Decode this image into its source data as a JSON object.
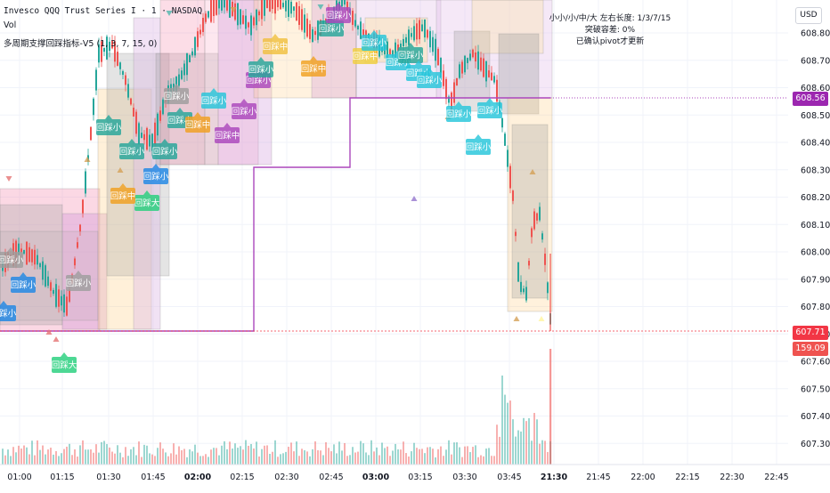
{
  "header": {
    "symbol_line": "Invesco QQQ Trust Series I · 1 · NASDAQ",
    "vol_label": "Vol",
    "indicator_line": "多周期支撑回踩指标-V5 (1, 3, 7, 15, 0)"
  },
  "info_panel": {
    "line1": "小小/小/中/大 左右长度: 1/3/7/15",
    "line2": "突破容差: 0%",
    "line3": "已确认pivot才更新"
  },
  "currency_button": "USD",
  "price_tags": {
    "level": "608.56",
    "last": "607.71",
    "volume": "159.09 K"
  },
  "colors": {
    "up": "#26a69a",
    "down": "#ef5350",
    "support_line": "#ab47bc",
    "level_tag": "#9c27b0",
    "last_tag": "#f23645"
  },
  "chart_data": {
    "type": "candlestick",
    "y_axis": {
      "range": [
        607.23,
        608.98
      ],
      "ticks": [
        "608.80",
        "608.70",
        "608.60",
        "608.50",
        "608.40",
        "608.30",
        "608.20",
        "608.10",
        "608.00",
        "607.90",
        "607.80",
        "607.70",
        "607.60",
        "607.50",
        "607.40",
        "607.30"
      ]
    },
    "x_axis": {
      "ticks": [
        "01:00",
        "01:15",
        "01:30",
        "01:45",
        "02:00",
        "02:15",
        "02:30",
        "02:45",
        "03:00",
        "03:15",
        "03:30",
        "03:45",
        "21:30",
        "21:45",
        "22:00",
        "22:15",
        "22:30",
        "22:45"
      ]
    },
    "label_texts": {
      "xs": "回踩小",
      "s": "回踩小",
      "m": "回踩中",
      "l": "回踩大"
    },
    "support_step_line": [
      {
        "from": "01:00",
        "to": "02:20",
        "value": 607.71
      },
      {
        "from": "02:20",
        "to": "02:43",
        "value": 608.31
      },
      {
        "from": "02:43",
        "to": "02:58",
        "value": 608.56
      },
      {
        "from": "02:58",
        "to": "21:30",
        "value": 608.56
      }
    ],
    "last_price": 607.71,
    "last_volume": "159.09 K"
  }
}
